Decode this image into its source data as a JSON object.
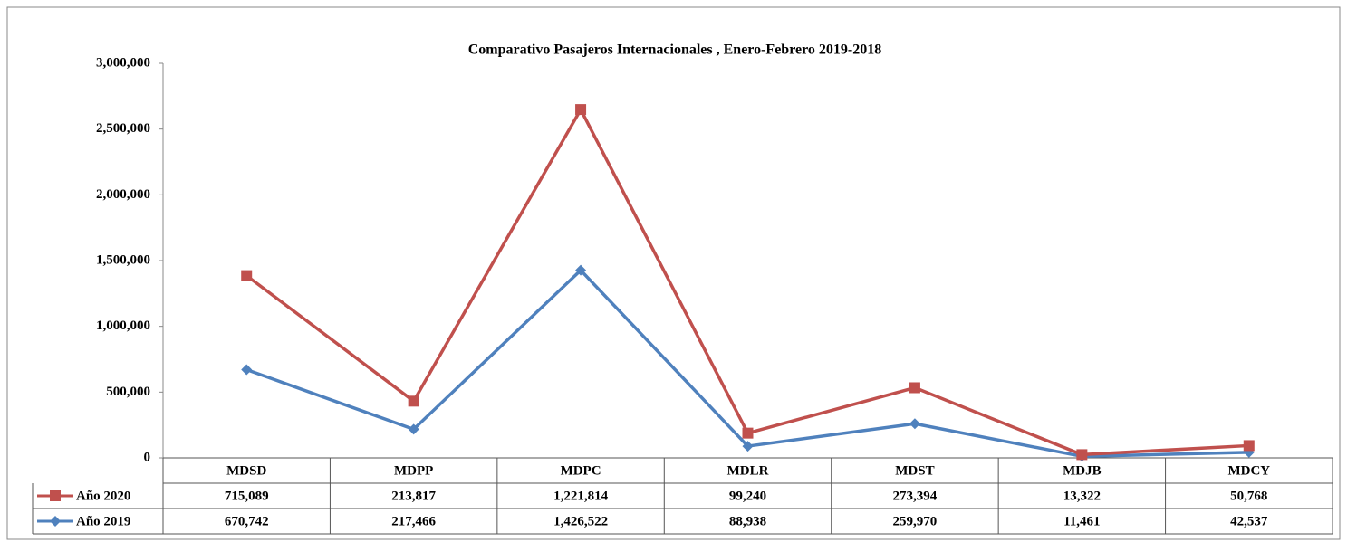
{
  "chart_data": {
    "type": "line",
    "stacked": true,
    "title": "Comparativo Pasajeros Internacionales , Enero-Febrero 2019-2018",
    "categories": [
      "MDSD",
      "MDPP",
      "MDPC",
      "MDLR",
      "MDST",
      "MDJB",
      "MDCY"
    ],
    "series": [
      {
        "name": "Año 2020",
        "color": "#c0504d",
        "marker": "square",
        "values": [
          715089,
          213817,
          1221814,
          99240,
          273394,
          13322,
          50768
        ],
        "value_labels": [
          "715,089",
          "213,817",
          "1,221,814",
          "99,240",
          "273,394",
          "13,322",
          "50,768"
        ]
      },
      {
        "name": "Año 2019",
        "color": "#4f81bd",
        "marker": "diamond",
        "values": [
          670742,
          217466,
          1426522,
          88938,
          259970,
          11461,
          42537
        ],
        "value_labels": [
          "670,742",
          "217,466",
          "1,426,522",
          "88,938",
          "259,970",
          "11,461",
          "42,537"
        ]
      }
    ],
    "ylim": [
      0,
      3000000
    ],
    "yticks": [
      0,
      {
        "value": 500000,
        "label": "500,000"
      },
      {
        "value": 1000000,
        "label": "1,000,000"
      },
      {
        "value": 1500000,
        "label": "1,500,000"
      },
      {
        "value": 2000000,
        "label": "2,000,000"
      },
      {
        "value": 2500000,
        "label": "2,500,000"
      },
      {
        "value": 3000000,
        "label": "3,000,000"
      }
    ],
    "grid": false
  }
}
